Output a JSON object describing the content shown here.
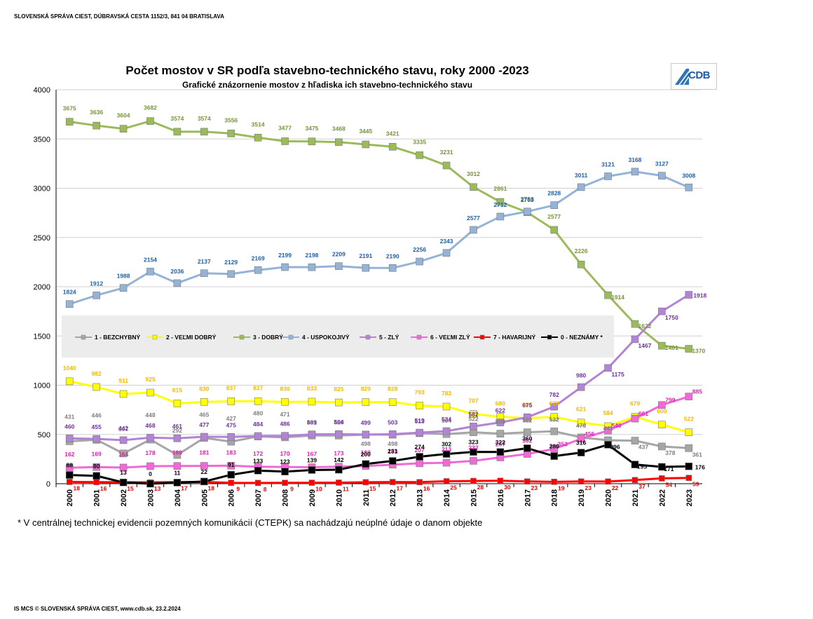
{
  "header": {
    "org": "SLOVENSKÁ SPRÁVA CIEST,  DÚBRAVSKÁ CESTA 1152/3, 841 04  BRATISLAVA"
  },
  "footer": {
    "text": "IS MCS © SLOVENSKÁ SPRÁVA CIEST, www.cdb.sk, 23.2.2024"
  },
  "note": {
    "text": "*   V centrálnej  technickej evidencii pozemných komunikácií (CTEPK) sa nachádzajú neúplné údaje o danom objekte"
  },
  "logo": {
    "text": "CDB"
  },
  "colors": {
    "bezchybny": "#a6a6a6",
    "velmi_dobry": "#ffff00",
    "dobry": "#9bbb59",
    "uspokojivy": "#95b3d7",
    "zly": "#b383d6",
    "velmi_zly": "#f06ad6",
    "havarijny": "#ff0000",
    "neznamy": "#000000"
  },
  "chart_data": {
    "type": "line",
    "title": "Počet mostov v SR podľa stavebno-technického stavu, roky 2000 -2023",
    "subtitle": "Grafické znázornenie mostov z hľadiska ich stavebno-technického stavu",
    "xlabel": "",
    "ylabel": "",
    "ylim": [
      0,
      4000
    ],
    "y_ticks": [
      "0",
      "500",
      "1000",
      "1500",
      "2000",
      "2500",
      "3000",
      "3500",
      "4000"
    ],
    "grid": true,
    "legend_position": "middle",
    "categories": [
      "2000",
      "2001",
      "2002",
      "2003",
      "2004",
      "2005",
      "2006",
      "2007",
      "2008",
      "2009",
      "2010",
      "2011",
      "2012",
      "2013",
      "2014",
      "2015",
      "2016",
      "2017",
      "2018",
      "2019",
      "2020",
      "2021",
      "2022",
      "2023"
    ],
    "series": [
      {
        "name": "1 - BEZCHYBNÝ",
        "color": "#a6a6a6",
        "label_color": "#7f7f7f",
        "values": [
          431,
          446,
          307,
          448,
          292,
          465,
          427,
          480,
          471,
          489,
          489,
          498,
          498,
          513,
          504,
          522,
          508,
          522,
          532,
          470,
          441,
          437,
          378,
          361
        ]
      },
      {
        "name": "2 - VEĽMI DOBRÝ",
        "color": "#ffff00",
        "label_color": "#f5b800",
        "values": [
          1040,
          982,
          911,
          925,
          815,
          830,
          837,
          837,
          830,
          833,
          825,
          829,
          828,
          793,
          783,
          707,
          680,
          665,
          679,
          621,
          584,
          679,
          600,
          522
        ]
      },
      {
        "name": "3 - DOBRÝ",
        "color": "#9bbb59",
        "label_color": "#77933c",
        "values": [
          3675,
          3636,
          3604,
          3682,
          3574,
          3574,
          3556,
          3514,
          3477,
          3475,
          3468,
          3445,
          3421,
          3335,
          3231,
          3012,
          2861,
          2756,
          2577,
          2226,
          1914,
          1622,
          1401,
          1370
        ]
      },
      {
        "name": "4 - USPOKOJIVÝ",
        "color": "#95b3d7",
        "label_color": "#1f5fa8",
        "values": [
          1824,
          1912,
          1988,
          2154,
          2036,
          2137,
          2129,
          2169,
          2199,
          2198,
          2209,
          2191,
          2190,
          2256,
          2343,
          2577,
          2712,
          2763,
          2828,
          3011,
          3121,
          3168,
          3127,
          3008
        ]
      },
      {
        "name": "5 - ZLÝ",
        "color": "#b383d6",
        "label_color": "#7030a0",
        "values": [
          460,
          455,
          442,
          468,
          461,
          477,
          475,
          484,
          486,
          501,
          504,
          499,
          503,
          519,
          534,
          582,
          622,
          675,
          782,
          980,
          1175,
          1467,
          1750,
          1918
        ]
      },
      {
        "name": "6 - VEĽMI ZLÝ",
        "color": "#f06ad6",
        "label_color": "#e01fb5",
        "values": [
          162,
          169,
          164,
          178,
          180,
          181,
          183,
          172,
          170,
          167,
          173,
          180,
          193,
          207,
          213,
          232,
          267,
          302,
          353,
          456,
          540,
          661,
          799,
          885
        ]
      },
      {
        "name": "7 - HAVARIJNÝ",
        "color": "#ff0000",
        "label_color": "#e00000",
        "values": [
          18,
          16,
          15,
          13,
          17,
          18,
          9,
          8,
          9,
          10,
          11,
          15,
          17,
          16,
          25,
          28,
          30,
          23,
          19,
          23,
          22,
          37,
          54,
          59
        ]
      },
      {
        "name": "0 - NEZNÁMY  *",
        "color": "#000000",
        "label_color": "#000000",
        "values": [
          88,
          80,
          13,
          0,
          11,
          22,
          91,
          133,
          123,
          139,
          142,
          200,
          231,
          274,
          302,
          323,
          322,
          360,
          280,
          316,
          396,
          195,
          171,
          176
        ]
      }
    ]
  }
}
